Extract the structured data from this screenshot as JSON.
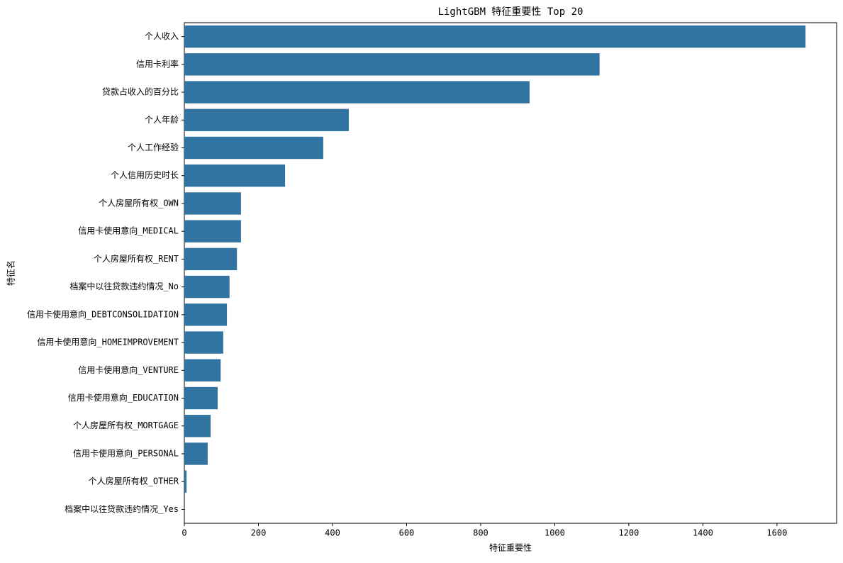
{
  "chart_data": {
    "type": "barh",
    "title": "LightGBM 特征重要性 Top 20",
    "x_label": "特征重要性",
    "y_label": "特征名",
    "categories": [
      "个人收入",
      "信用卡利率",
      "贷款占收入的百分比",
      "个人年龄",
      "个人工作经验",
      "个人信用历史时长",
      "个人房屋所有权_OWN",
      "信用卡使用意向_MEDICAL",
      "个人房屋所有权_RENT",
      "档案中以往贷款违约情况_No",
      "信用卡使用意向_DEBTCONSOLIDATION",
      "信用卡使用意向_HOMEIMPROVEMENT",
      "信用卡使用意向_VENTURE",
      "信用卡使用意向_EDUCATION",
      "个人房屋所有权_MORTGAGE",
      "信用卡使用意向_PERSONAL",
      "个人房屋所有权_OTHER",
      "档案中以往贷款违约情况_Yes"
    ],
    "values": [
      1677,
      1121,
      932,
      444,
      375,
      272,
      153,
      153,
      142,
      122,
      115,
      105,
      98,
      90,
      71,
      63,
      6,
      0
    ],
    "color": "#3274a1",
    "xlim": [
      0,
      1761
    ],
    "xticks": [
      0,
      200,
      400,
      600,
      800,
      1000,
      1200,
      1400,
      1600
    ]
  }
}
